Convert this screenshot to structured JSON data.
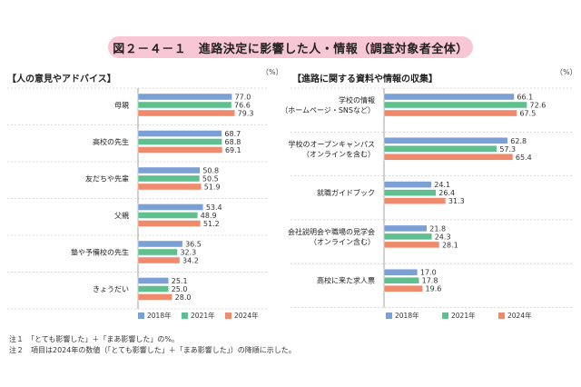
{
  "figure_title": "図２－４－１　進路決定に影響した人・情報（調査対象者全体）",
  "unit": "（%）",
  "notes": [
    "注１　「とても影響した」＋「まあ影響した」の%。",
    "注２　項目は2024年の数値（「とても影響した」＋「まあ影響した」）の降順に示した。"
  ],
  "colors": {
    "2018": "#7ba0d6",
    "2021": "#5fbf8f",
    "2024": "#f08a6c",
    "title_bg": "#f7c7d6"
  },
  "chart_data": [
    {
      "type": "bar",
      "orientation": "horizontal",
      "title": "【人の意見やアドバイス】",
      "categories": [
        "母親",
        "高校の先生",
        "友だちや先輩",
        "父親",
        "塾や予備校の先生",
        "きょうだい"
      ],
      "series": [
        {
          "name": "2018年",
          "values": [
            77.0,
            68.7,
            50.8,
            53.4,
            36.5,
            25.1
          ]
        },
        {
          "name": "2021年",
          "values": [
            76.6,
            68.8,
            50.5,
            48.9,
            32.3,
            25.0
          ]
        },
        {
          "name": "2024年",
          "values": [
            79.3,
            69.1,
            51.9,
            51.2,
            34.2,
            28.0
          ]
        }
      ],
      "value_labels": [
        [
          "77.0",
          "68.7",
          "50.8",
          "53.4",
          "36.5",
          "25.1"
        ],
        [
          "76.6",
          "68.8",
          "50.5",
          "48.9",
          "32.3",
          "25.0"
        ],
        [
          "79.3",
          "69.1",
          "51.9",
          "51.2",
          "34.2",
          "28.0"
        ]
      ],
      "xlim": [
        0,
        100
      ],
      "legend": "bottom"
    },
    {
      "type": "bar",
      "orientation": "horizontal",
      "title": "【進路に関する資料や情報の収集】",
      "categories": [
        "学校の情報\n（ホームページ・SNSなど）",
        "学校のオープンキャンパス\n（オンラインを含む）",
        "就職ガイドブック",
        "会社説明会や職場の見学会\n（オンライン含む）",
        "高校に来た求人票"
      ],
      "series": [
        {
          "name": "2018年",
          "values": [
            66.1,
            62.8,
            24.1,
            21.8,
            17.0
          ]
        },
        {
          "name": "2021年",
          "values": [
            72.6,
            57.3,
            26.4,
            24.3,
            17.8
          ]
        },
        {
          "name": "2024年",
          "values": [
            67.5,
            65.4,
            31.3,
            28.1,
            19.6
          ]
        }
      ],
      "value_labels": [
        [
          "66.1",
          "62.8",
          "24.1",
          "21.8",
          "17.0"
        ],
        [
          "72.6",
          "57.3",
          "26.4",
          "24.3",
          "17.8"
        ],
        [
          "67.5",
          "65.4",
          "31.3",
          "28.1",
          "19.6"
        ]
      ],
      "xlim": [
        0,
        100
      ],
      "legend": "bottom"
    }
  ]
}
